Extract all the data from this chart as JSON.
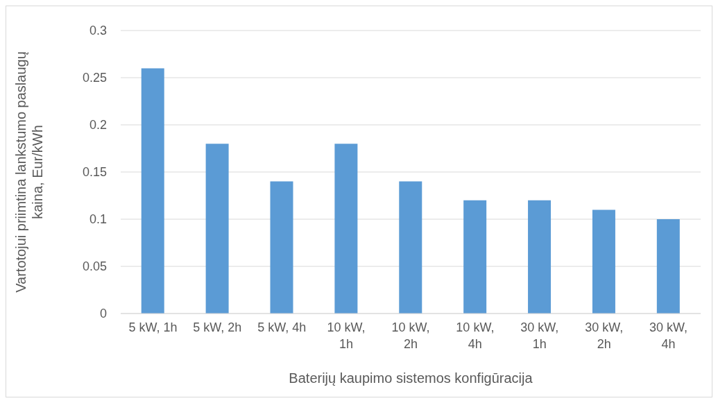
{
  "chart_data": {
    "type": "bar",
    "xlabel": "Baterijų kaupimo sistemos konfigūracija",
    "ylabel": "Vartotojui priimtina lankstumo paslaugų kaina, Eur/kWh",
    "categories": [
      "5 kW, 1h",
      "5 kW, 2h",
      "5 kW, 4h",
      "10 kW, 1h",
      "10 kW, 2h",
      "10 kW, 4h",
      "30 kW, 1h",
      "30 kW, 2h",
      "30 kW, 4h"
    ],
    "values": [
      0.26,
      0.18,
      0.14,
      0.18,
      0.14,
      0.12,
      0.12,
      0.11,
      0.1
    ],
    "color": "#5b9bd5",
    "ylim": [
      0,
      0.3
    ],
    "yticks": [
      0,
      0.05,
      0.1,
      0.15,
      0.2,
      0.25,
      0.3
    ],
    "grid": "y",
    "legend": false
  }
}
